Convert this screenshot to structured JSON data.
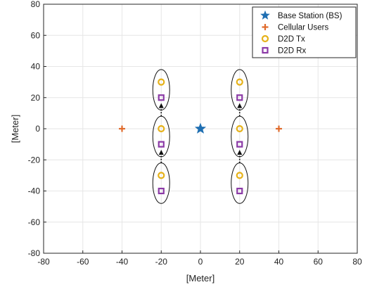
{
  "chart_data": {
    "type": "scatter",
    "xlabel": "[Meter]",
    "ylabel": "[Meter]",
    "xlim": [
      -80,
      80
    ],
    "ylim": [
      -80,
      80
    ],
    "xticks": [
      -80,
      -60,
      -40,
      -20,
      0,
      20,
      40,
      60,
      80
    ],
    "yticks": [
      -80,
      -60,
      -40,
      -20,
      0,
      20,
      40,
      60,
      80
    ],
    "grid": true,
    "legend_position": "top-right",
    "series": [
      {
        "name": "Base Station (BS)",
        "marker": "star",
        "color": "#1f6fb2",
        "points": [
          [
            0,
            0
          ]
        ]
      },
      {
        "name": "Cellular Users",
        "marker": "plus",
        "color": "#e06a2b",
        "points": [
          [
            -40,
            0
          ],
          [
            40,
            0
          ]
        ]
      },
      {
        "name": "D2D Tx",
        "marker": "circle",
        "color": "#e6b21a",
        "points": [
          [
            -20,
            30
          ],
          [
            -20,
            0
          ],
          [
            -20,
            -30
          ],
          [
            20,
            30
          ],
          [
            20,
            0
          ],
          [
            20,
            -30
          ]
        ]
      },
      {
        "name": "D2D Rx",
        "marker": "square",
        "color": "#8b3aa6",
        "points": [
          [
            -20,
            20
          ],
          [
            -20,
            -10
          ],
          [
            -20,
            -40
          ],
          [
            20,
            20
          ],
          [
            20,
            -10
          ],
          [
            20,
            -40
          ]
        ]
      }
    ],
    "pair_ellipses": [
      {
        "x": -20,
        "y": 25
      },
      {
        "x": -20,
        "y": -5
      },
      {
        "x": -20,
        "y": -35
      },
      {
        "x": 20,
        "y": 25
      },
      {
        "x": 20,
        "y": -5
      },
      {
        "x": 20,
        "y": -35
      }
    ],
    "arrows": [
      {
        "x": -20,
        "from": -22,
        "to": -14
      },
      {
        "x": -20,
        "from": 8,
        "to": 16
      },
      {
        "x": 20,
        "from": -22,
        "to": -14
      },
      {
        "x": 20,
        "from": 8,
        "to": 16
      }
    ]
  }
}
